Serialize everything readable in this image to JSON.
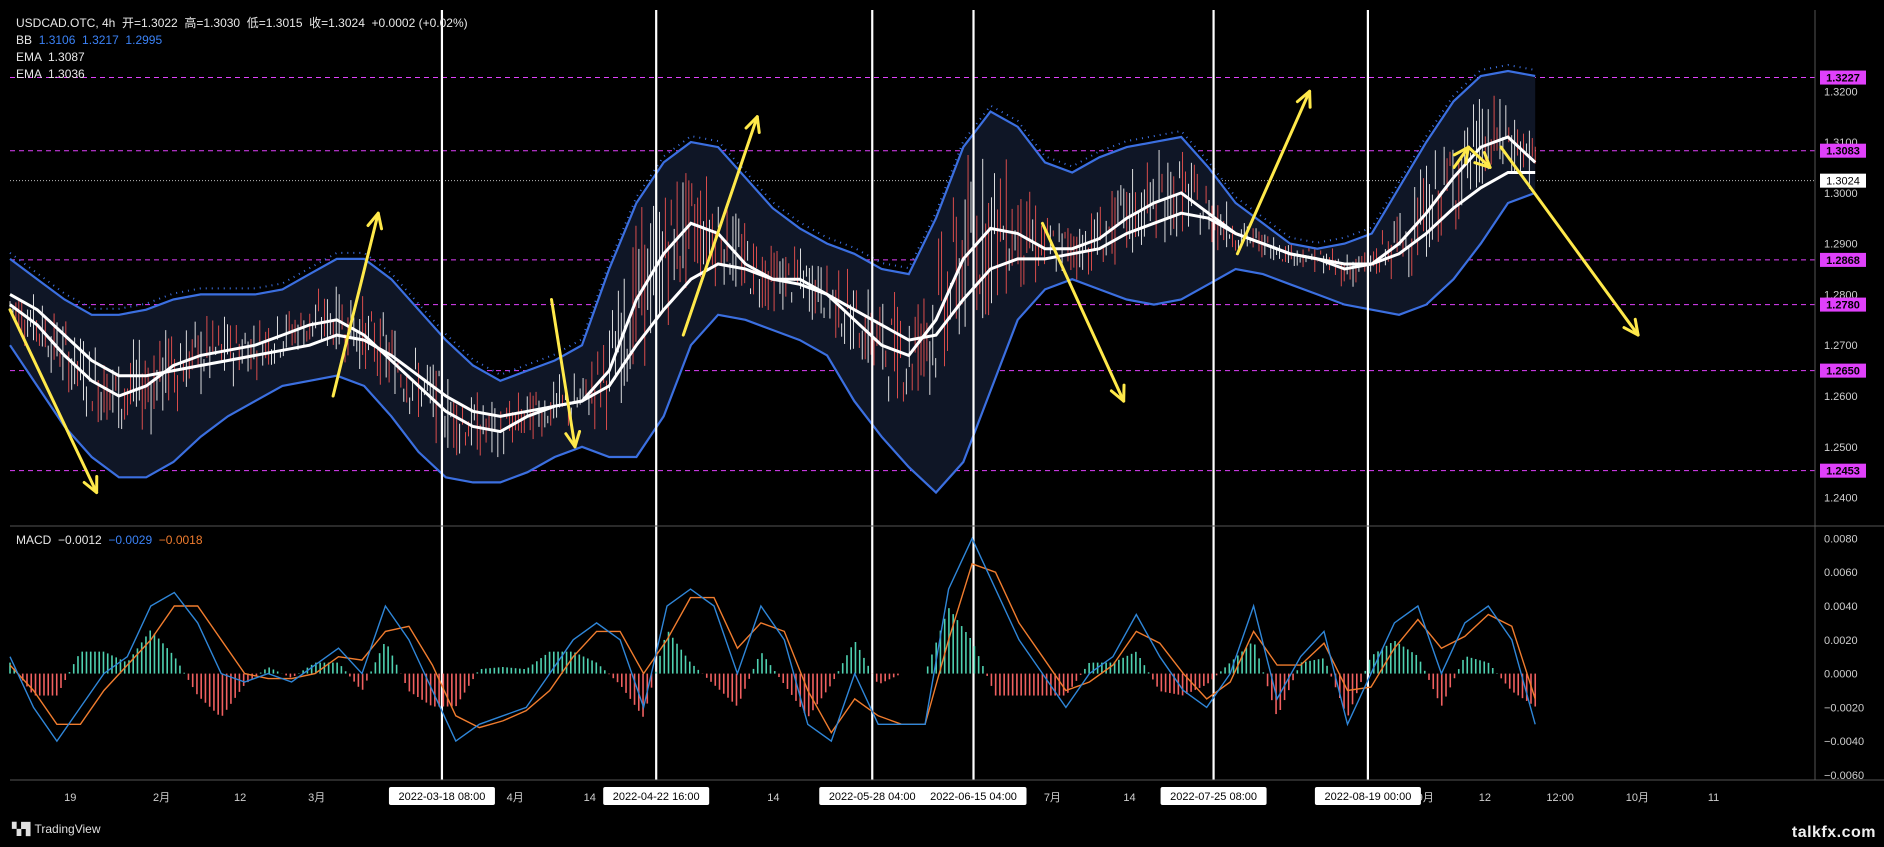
{
  "header": {
    "symbol_line": "USDCAD.OTC, 4h  开=1.3022  高=1.3030  低=1.3015  收=1.3024  +0.0002 (+0.02%)",
    "bb_label": "BB",
    "bb_values": "1.3106  1.3217  1.2995",
    "ema1": "EMA  1.3087",
    "ema2": "EMA  1.3036",
    "macd_label": "MACD",
    "macd_v1": "−0.0012",
    "macd_v2": "−0.0029",
    "macd_v3": "−0.0018"
  },
  "branding": {
    "logo_text": "TradingView",
    "watermark": "talkfx.com"
  },
  "colors": {
    "background": "#000000",
    "bb": "#3b6fe0",
    "ema": "#ffffff",
    "arrow": "#ffe94a",
    "level": "#e040fb",
    "macd_line": "#2f86d8",
    "signal_line": "#f07c2e",
    "hist_pos": "#4fd1b0",
    "hist_neg": "#f06060"
  },
  "chart_data": [
    {
      "type": "line",
      "title": "USDCAD.OTC, 4h",
      "ylim": [
        1.235,
        1.336
      ],
      "price_ticks": [
        "1.2400",
        "1.2500",
        "1.2600",
        "1.2700",
        "1.2800",
        "1.2900",
        "1.3000",
        "1.3100",
        "1.3200"
      ],
      "levels": [
        {
          "value": 1.3227,
          "label": "1.3227"
        },
        {
          "value": 1.3083,
          "label": "1.3083"
        },
        {
          "value": 1.2868,
          "label": "1.2868"
        },
        {
          "value": 1.278,
          "label": "1.2780"
        },
        {
          "value": 1.265,
          "label": "1.2650"
        },
        {
          "value": 1.2453,
          "label": "1.2453"
        }
      ],
      "current_price": {
        "value": 1.3024,
        "label": "1.3024"
      },
      "ema_fast": [
        1.278,
        1.274,
        1.268,
        1.263,
        1.26,
        1.262,
        1.266,
        1.268,
        1.269,
        1.27,
        1.272,
        1.274,
        1.275,
        1.272,
        1.267,
        1.262,
        1.257,
        1.254,
        1.253,
        1.256,
        1.258,
        1.259,
        1.265,
        1.279,
        1.288,
        1.294,
        1.292,
        1.286,
        1.283,
        1.283,
        1.28,
        1.275,
        1.27,
        1.268,
        1.275,
        1.287,
        1.293,
        1.292,
        1.289,
        1.289,
        1.291,
        1.295,
        1.298,
        1.3,
        1.296,
        1.292,
        1.29,
        1.288,
        1.287,
        1.285,
        1.286,
        1.29,
        1.296,
        1.303,
        1.309,
        1.311,
        1.306
      ],
      "ema_slow": [
        1.28,
        1.277,
        1.272,
        1.267,
        1.264,
        1.264,
        1.265,
        1.266,
        1.267,
        1.268,
        1.269,
        1.27,
        1.272,
        1.271,
        1.268,
        1.264,
        1.26,
        1.257,
        1.256,
        1.257,
        1.258,
        1.259,
        1.262,
        1.27,
        1.277,
        1.283,
        1.286,
        1.285,
        1.283,
        1.282,
        1.28,
        1.277,
        1.274,
        1.271,
        1.272,
        1.279,
        1.285,
        1.287,
        1.287,
        1.288,
        1.289,
        1.292,
        1.294,
        1.296,
        1.295,
        1.292,
        1.29,
        1.288,
        1.287,
        1.286,
        1.286,
        1.288,
        1.292,
        1.297,
        1.301,
        1.304,
        1.304
      ],
      "bb_upper": [
        1.287,
        1.283,
        1.279,
        1.276,
        1.276,
        1.277,
        1.279,
        1.28,
        1.28,
        1.28,
        1.281,
        1.284,
        1.287,
        1.287,
        1.283,
        1.277,
        1.271,
        1.266,
        1.263,
        1.265,
        1.267,
        1.27,
        1.285,
        1.298,
        1.306,
        1.31,
        1.309,
        1.303,
        1.297,
        1.293,
        1.29,
        1.288,
        1.285,
        1.284,
        1.295,
        1.309,
        1.316,
        1.313,
        1.306,
        1.304,
        1.307,
        1.309,
        1.31,
        1.311,
        1.305,
        1.298,
        1.294,
        1.29,
        1.289,
        1.29,
        1.292,
        1.301,
        1.31,
        1.318,
        1.323,
        1.324,
        1.323
      ],
      "bb_lower": [
        1.27,
        1.262,
        1.254,
        1.248,
        1.244,
        1.244,
        1.247,
        1.252,
        1.256,
        1.259,
        1.262,
        1.263,
        1.264,
        1.262,
        1.256,
        1.249,
        1.244,
        1.243,
        1.243,
        1.245,
        1.248,
        1.25,
        1.248,
        1.248,
        1.256,
        1.27,
        1.276,
        1.275,
        1.273,
        1.271,
        1.268,
        1.259,
        1.252,
        1.246,
        1.241,
        1.247,
        1.261,
        1.275,
        1.281,
        1.283,
        1.281,
        1.279,
        1.278,
        1.279,
        1.282,
        1.285,
        1.284,
        1.282,
        1.28,
        1.278,
        1.277,
        1.276,
        1.278,
        1.283,
        1.29,
        1.298,
        1.3
      ],
      "arrows": [
        {
          "from": [
            0.0,
            1.277
          ],
          "to": [
            0.048,
            1.241
          ]
        },
        {
          "from": [
            0.179,
            1.26
          ],
          "to": [
            0.204,
            1.296
          ]
        },
        {
          "from": [
            0.3,
            1.279
          ],
          "to": [
            0.313,
            1.25
          ]
        },
        {
          "from": [
            0.373,
            1.272
          ],
          "to": [
            0.414,
            1.315
          ]
        },
        {
          "from": [
            0.572,
            1.294
          ],
          "to": [
            0.617,
            1.259
          ]
        },
        {
          "from": [
            0.68,
            1.288
          ],
          "to": [
            0.72,
            1.32
          ]
        },
        {
          "from": [
            0.8,
            1.305
          ],
          "to": [
            0.808,
            1.309
          ]
        },
        {
          "from": [
            0.808,
            1.309
          ],
          "to": [
            0.82,
            1.305
          ]
        },
        {
          "from": [
            0.826,
            1.309
          ],
          "to": [
            0.902,
            1.272
          ]
        }
      ]
    },
    {
      "type": "bar",
      "title": "MACD",
      "ylim": [
        -0.0063,
        0.0085
      ],
      "macd_ticks": [
        "0.0080",
        "0.0060",
        "0.0040",
        "0.0020",
        "0.0000",
        "−0.0020",
        "−0.0040",
        "−0.0060"
      ],
      "macd": [
        0.001,
        -0.002,
        -0.004,
        -0.002,
        0.0,
        0.001,
        0.004,
        0.0048,
        0.003,
        0.0,
        -0.0005,
        0.0,
        -0.0005,
        0.0005,
        0.0015,
        0.0,
        0.004,
        0.002,
        -0.001,
        -0.004,
        -0.003,
        -0.0025,
        -0.002,
        0.0,
        0.002,
        0.003,
        0.002,
        -0.002,
        0.004,
        0.005,
        0.004,
        0.0,
        0.004,
        0.002,
        -0.003,
        -0.004,
        0.0,
        -0.003,
        -0.003,
        -0.003,
        0.005,
        0.008,
        0.005,
        0.002,
        0.0,
        -0.002,
        0.0,
        0.001,
        0.0035,
        0.001,
        -0.001,
        -0.002,
        0.0,
        0.004,
        -0.0015,
        0.001,
        0.0025,
        -0.003,
        0.0,
        0.003,
        0.004,
        0.0,
        0.003,
        0.004,
        0.002,
        -0.003
      ],
      "signal": [
        0.0005,
        -0.001,
        -0.003,
        -0.003,
        -0.001,
        0.0005,
        0.002,
        0.004,
        0.004,
        0.002,
        0.0,
        -0.0003,
        -0.0003,
        0.0,
        0.001,
        0.0008,
        0.0025,
        0.0028,
        0.0005,
        -0.0025,
        -0.0032,
        -0.0028,
        -0.0022,
        -0.001,
        0.001,
        0.0025,
        0.0025,
        0.0,
        0.002,
        0.0045,
        0.0045,
        0.0015,
        0.003,
        0.0025,
        -0.001,
        -0.0035,
        -0.0015,
        -0.0025,
        -0.003,
        -0.003,
        0.002,
        0.0065,
        0.006,
        0.003,
        0.001,
        -0.001,
        -0.0005,
        0.0005,
        0.0025,
        0.0018,
        0.0,
        -0.0015,
        -0.0005,
        0.0025,
        0.0005,
        0.0005,
        0.0018,
        -0.001,
        -0.0008,
        0.0015,
        0.0032,
        0.0015,
        0.0022,
        0.0035,
        0.0028,
        -0.0015
      ]
    }
  ],
  "time_axis": [
    {
      "label": "19",
      "pos": 0.0334
    },
    {
      "label": "2月",
      "pos": 0.084
    },
    {
      "label": "12",
      "pos": 0.1275
    },
    {
      "label": "3月",
      "pos": 0.1699
    },
    {
      "label": "4月",
      "pos": 0.2799
    },
    {
      "label": "14",
      "pos": 0.3212
    },
    {
      "label": "14",
      "pos": 0.4229
    },
    {
      "label": "7月",
      "pos": 0.5775
    },
    {
      "label": "14",
      "pos": 0.6202
    },
    {
      "label": "9月",
      "pos": 0.7841
    },
    {
      "label": "12",
      "pos": 0.8171
    },
    {
      "label": "12:00",
      "pos": 0.8588
    },
    {
      "label": "10月",
      "pos": 0.9016
    },
    {
      "label": "11",
      "pos": 0.9438
    }
  ],
  "markers": [
    {
      "label": "2022-03-18  08:00",
      "pos": 0.2393
    },
    {
      "label": "2022-04-22  16:00",
      "pos": 0.358
    },
    {
      "label": "2022-05-28  04:00",
      "pos": 0.4777
    },
    {
      "label": "2022-06-15  04:00",
      "pos": 0.5338
    },
    {
      "label": "2022-07-25  08:00",
      "pos": 0.6668
    },
    {
      "label": "2022-08-19  00:00",
      "pos": 0.7523
    }
  ]
}
